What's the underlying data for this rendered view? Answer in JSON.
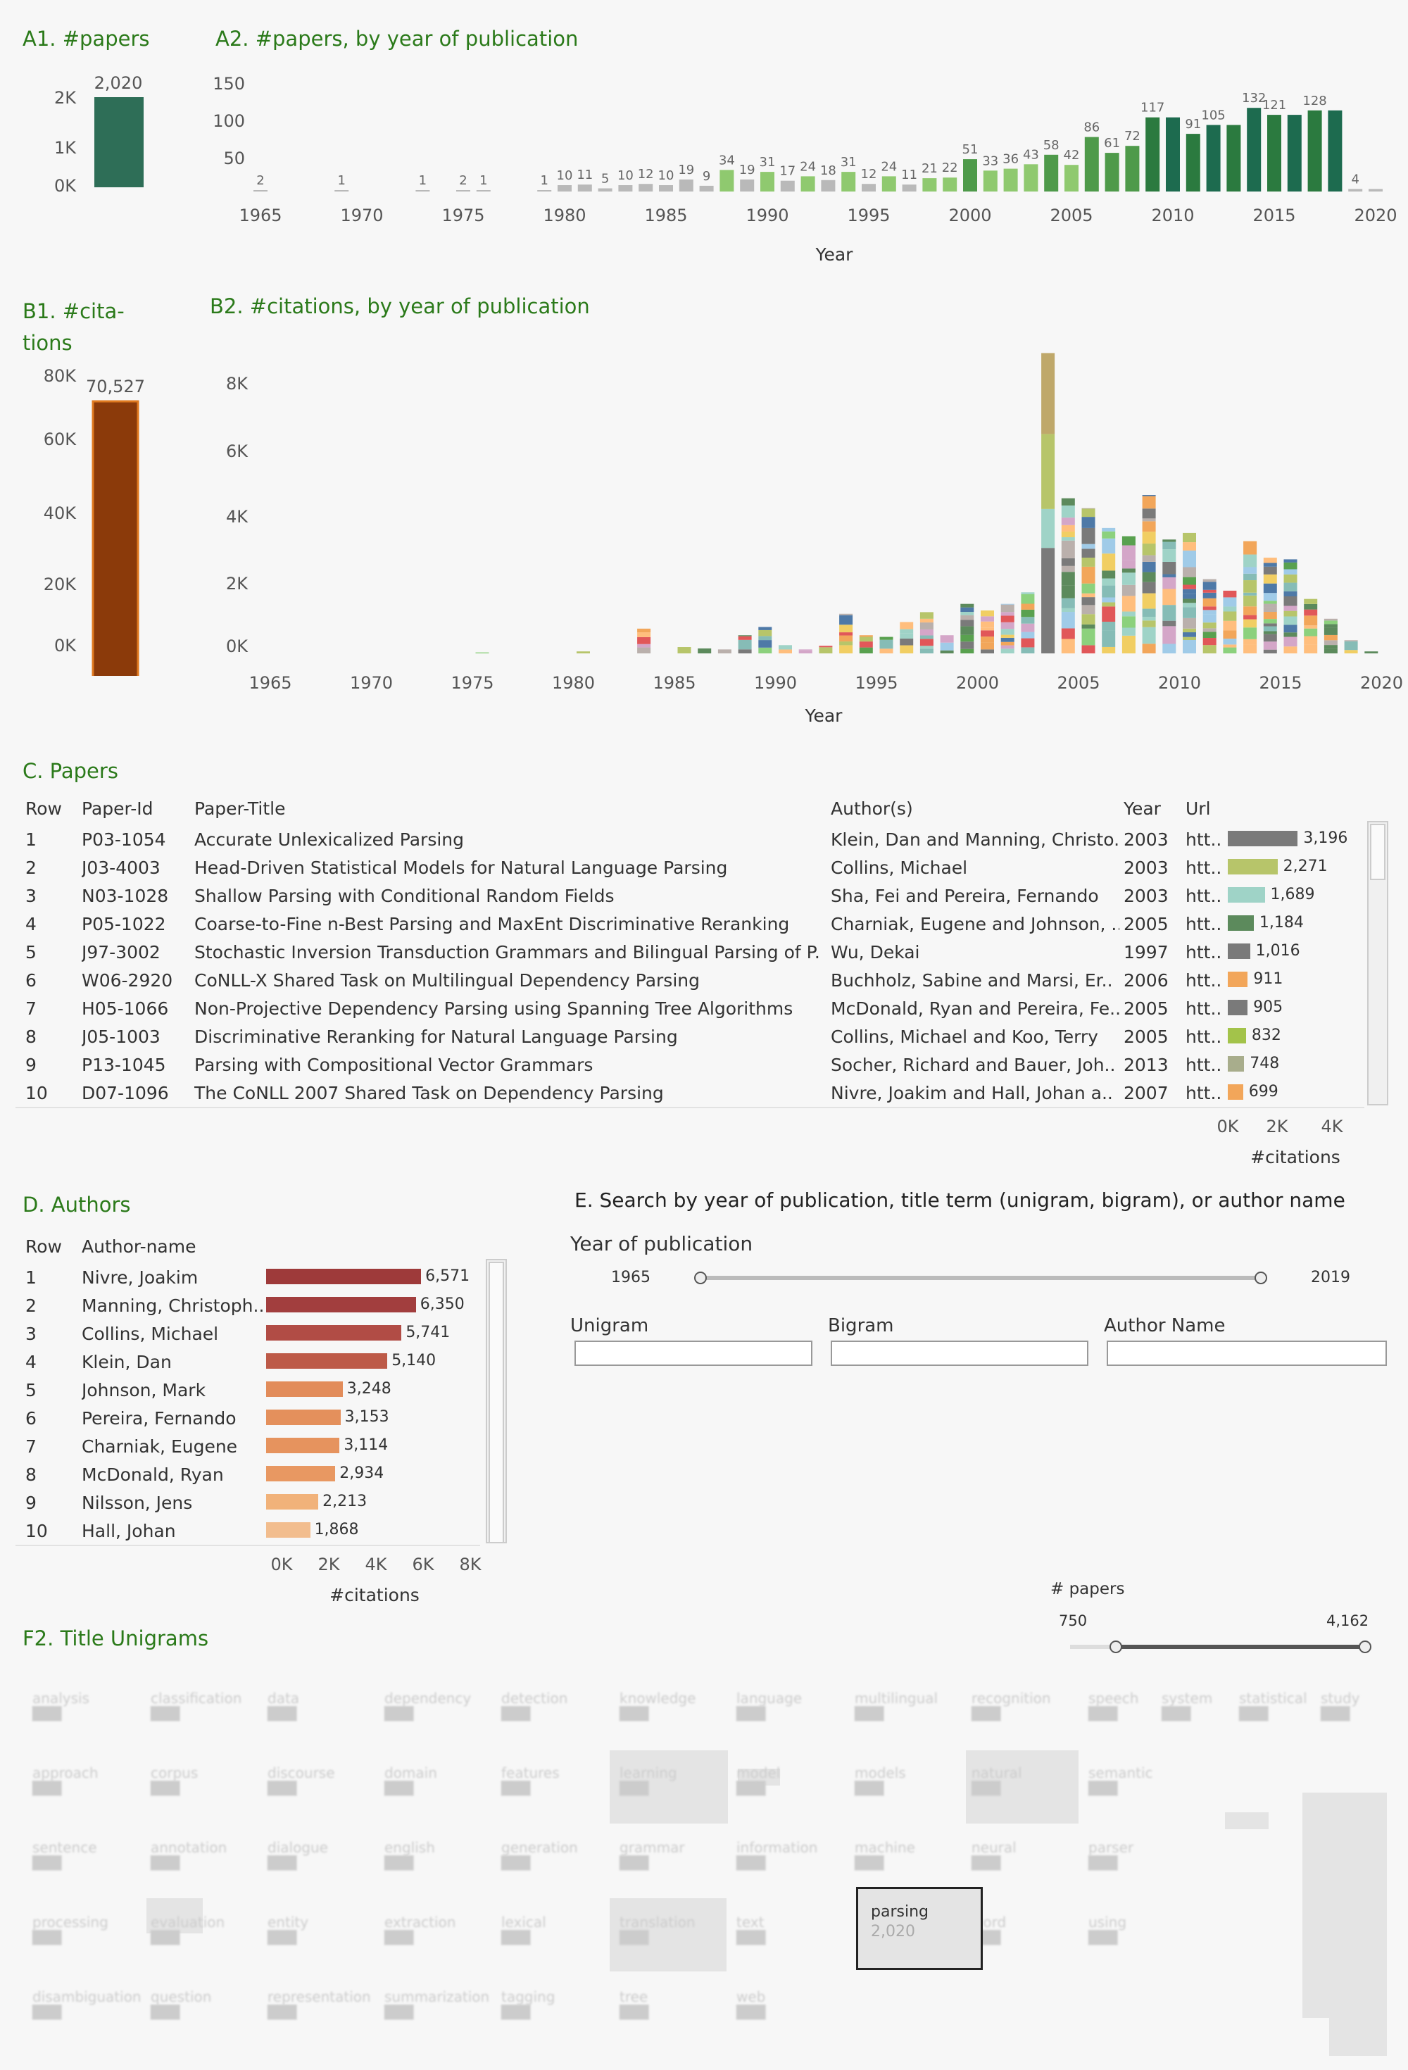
{
  "sections": {
    "a1": "A1. #papers",
    "a2": "A2. #papers, by year of publication",
    "b1_line1": "B1. #cita-",
    "b1_line2": "tions",
    "b2": "B2. #citations, by year of publication",
    "c": "C. Papers",
    "d": "D. Authors",
    "e": "E. Search by year of publication, title term (unigram, bigram), or  author name",
    "f2": "F2. Title Unigrams"
  },
  "colors": {
    "papers_total": "#2e6e57",
    "citations_total": "#8b3a0a",
    "section_title": "#2b7a1a"
  },
  "chart_data": [
    {
      "id": "A1",
      "type": "bar",
      "categories": [
        ""
      ],
      "values": [
        2020
      ],
      "data_label": "2,020",
      "yticks": [
        "0K",
        "1K",
        "2K"
      ],
      "ylim": [
        0,
        2400
      ]
    },
    {
      "id": "A2",
      "type": "bar",
      "xlabel": "Year",
      "yticks": [
        "50",
        "100",
        "150"
      ],
      "xticks": [
        "1965",
        "1970",
        "1975",
        "1980",
        "1985",
        "1990",
        "1995",
        "2000",
        "2005",
        "2010",
        "2015",
        "2020"
      ],
      "ylim": [
        0,
        160
      ],
      "x": [
        1965,
        1969,
        1973,
        1975,
        1976,
        1979,
        1980,
        1981,
        1982,
        1983,
        1984,
        1985,
        1986,
        1987,
        1988,
        1989,
        1990,
        1991,
        1992,
        1993,
        1994,
        1995,
        1996,
        1997,
        1998,
        1999,
        2000,
        2001,
        2002,
        2003,
        2004,
        2005,
        2006,
        2007,
        2008,
        2009,
        2010,
        2011,
        2012,
        2013,
        2014,
        2015,
        2016,
        2017,
        2018,
        2019,
        2020
      ],
      "values": [
        2,
        1,
        1,
        2,
        1,
        1,
        10,
        11,
        5,
        10,
        12,
        10,
        19,
        9,
        34,
        19,
        31,
        17,
        24,
        18,
        31,
        12,
        24,
        11,
        21,
        22,
        51,
        33,
        36,
        43,
        58,
        42,
        86,
        61,
        72,
        117,
        117,
        91,
        105,
        105,
        132,
        121,
        121,
        128,
        128,
        4,
        4
      ],
      "labels": [
        "2",
        "1",
        "1",
        "2",
        "1",
        "1",
        "10",
        "11",
        "5",
        "10",
        "12",
        "10",
        "19",
        "9",
        "34",
        "19",
        "31",
        "17",
        "24",
        "18",
        "31",
        "12",
        "24",
        "11",
        "21",
        "22",
        "51",
        "33",
        "36",
        "43",
        "58",
        "42",
        "86",
        "61",
        "72",
        "117",
        "",
        "91",
        "105",
        "",
        "132",
        "121",
        "",
        "128",
        "",
        "4",
        ""
      ]
    },
    {
      "id": "B1",
      "type": "bar",
      "categories": [
        ""
      ],
      "values": [
        70527
      ],
      "data_label": "70,527",
      "yticks": [
        "0K",
        "20K",
        "40K",
        "60K",
        "80K"
      ],
      "ylim": [
        0,
        82000
      ]
    },
    {
      "id": "B2",
      "type": "bar",
      "stacked": true,
      "xlabel": "Year",
      "yticks": [
        "0K",
        "2K",
        "4K",
        "6K",
        "8K"
      ],
      "xticks": [
        "1965",
        "1970",
        "1975",
        "1980",
        "1985",
        "1990",
        "1995",
        "2000",
        "2005",
        "2010",
        "2015",
        "2020"
      ],
      "ylim": [
        0,
        9200
      ],
      "x": [
        1975,
        1980,
        1983,
        1985,
        1986,
        1987,
        1988,
        1989,
        1990,
        1991,
        1992,
        1993,
        1994,
        1995,
        1996,
        1997,
        1998,
        1999,
        2000,
        2001,
        2002,
        2003,
        2004,
        2005,
        2006,
        2007,
        2008,
        2009,
        2010,
        2011,
        2012,
        2013,
        2014,
        2015,
        2016,
        2017,
        2018,
        2019
      ],
      "values": [
        30,
        60,
        750,
        200,
        150,
        120,
        550,
        800,
        250,
        120,
        230,
        1200,
        550,
        500,
        950,
        1250,
        550,
        1500,
        1300,
        1500,
        1850,
        9100,
        4700,
        4400,
        3800,
        3550,
        4800,
        3450,
        3650,
        2250,
        1900,
        3400,
        2900,
        2850,
        1650,
        1050,
        400,
        60
      ]
    }
  ],
  "papers_table": {
    "title": "C. Papers",
    "columns": [
      "Row",
      "Paper-Id",
      "Paper-Title",
      "Author(s)",
      "Year",
      "Url"
    ],
    "rows": [
      {
        "row": "1",
        "id": "P03-1054",
        "title": "Accurate Unlexicalized Parsing",
        "authors": "Klein, Dan and Manning, Christo..",
        "year": "2003",
        "url": "htt..",
        "citations": 3196,
        "cit_label": "3,196",
        "color": "#7a7a7a"
      },
      {
        "row": "2",
        "id": "J03-4003",
        "title": "Head-Driven Statistical Models for Natural Language Parsing",
        "authors": "Collins, Michael",
        "year": "2003",
        "url": "htt..",
        "citations": 2271,
        "cit_label": "2,271",
        "color": "#b7c56a"
      },
      {
        "row": "3",
        "id": "N03-1028",
        "title": "Shallow Parsing with Conditional Random Fields",
        "authors": "Sha, Fei and Pereira, Fernando",
        "year": "2003",
        "url": "htt..",
        "citations": 1689,
        "cit_label": "1,689",
        "color": "#9fd3c7"
      },
      {
        "row": "4",
        "id": "P05-1022",
        "title": "Coarse-to-Fine n-Best Parsing and MaxEnt Discriminative Reranking",
        "authors": "Charniak, Eugene and Johnson, ..",
        "year": "2005",
        "url": "htt..",
        "citations": 1184,
        "cit_label": "1,184",
        "color": "#5c8a5c"
      },
      {
        "row": "5",
        "id": "J97-3002",
        "title": "Stochastic Inversion Transduction Grammars and Bilingual Parsing of P..",
        "authors": "Wu, Dekai",
        "year": "1997",
        "url": "htt..",
        "citations": 1016,
        "cit_label": "1,016",
        "color": "#7a7a7a"
      },
      {
        "row": "6",
        "id": "W06-2920",
        "title": "CoNLL-X Shared Task on Multilingual Dependency Parsing",
        "authors": "Buchholz, Sabine and Marsi, Er..",
        "year": "2006",
        "url": "htt..",
        "citations": 911,
        "cit_label": "911",
        "color": "#f2a65a"
      },
      {
        "row": "7",
        "id": "H05-1066",
        "title": "Non-Projective Dependency Parsing using Spanning Tree Algorithms",
        "authors": "McDonald, Ryan and Pereira, Fe..",
        "year": "2005",
        "url": "htt..",
        "citations": 905,
        "cit_label": "905",
        "color": "#7a7a7a"
      },
      {
        "row": "8",
        "id": "J05-1003",
        "title": "Discriminative Reranking for Natural Language Parsing",
        "authors": "Collins, Michael and Koo, Terry",
        "year": "2005",
        "url": "htt..",
        "citations": 832,
        "cit_label": "832",
        "color": "#a3c34a"
      },
      {
        "row": "9",
        "id": "P13-1045",
        "title": "Parsing with Compositional Vector Grammars",
        "authors": "Socher, Richard and Bauer, Joh..",
        "year": "2013",
        "url": "htt..",
        "citations": 748,
        "cit_label": "748",
        "color": "#a8ad8c"
      },
      {
        "row": "10",
        "id": "D07-1096",
        "title": "The CoNLL 2007 Shared Task on Dependency Parsing",
        "authors": "Nivre, Joakim and Hall, Johan a..",
        "year": "2007",
        "url": "htt..",
        "citations": 699,
        "cit_label": "699",
        "color": "#f2a65a"
      }
    ],
    "axis_ticks": [
      "0K",
      "2K",
      "4K"
    ],
    "axis_title": "#citations",
    "axis_max": 5000
  },
  "authors_table": {
    "columns": [
      "Row",
      "Author-name"
    ],
    "rows": [
      {
        "row": "1",
        "name": "Nivre, Joakim",
        "citations": 6571,
        "label": "6,571",
        "color": "#9e3a3a"
      },
      {
        "row": "2",
        "name": "Manning, Christoph..",
        "citations": 6350,
        "label": "6,350",
        "color": "#a23e3e"
      },
      {
        "row": "3",
        "name": "Collins, Michael",
        "citations": 5741,
        "label": "5,741",
        "color": "#b14c45"
      },
      {
        "row": "4",
        "name": "Klein, Dan",
        "citations": 5140,
        "label": "5,140",
        "color": "#bd5a48"
      },
      {
        "row": "5",
        "name": "Johnson, Mark",
        "citations": 3248,
        "label": "3,248",
        "color": "#e28c5a"
      },
      {
        "row": "6",
        "name": "Pereira, Fernando",
        "citations": 3153,
        "label": "3,153",
        "color": "#e4905c"
      },
      {
        "row": "7",
        "name": "Charniak, Eugene",
        "citations": 3114,
        "label": "3,114",
        "color": "#e6935e"
      },
      {
        "row": "8",
        "name": "McDonald, Ryan",
        "citations": 2934,
        "label": "2,934",
        "color": "#e89862"
      },
      {
        "row": "9",
        "name": "Nilsson, Jens",
        "citations": 2213,
        "label": "2,213",
        "color": "#f1b27a"
      },
      {
        "row": "10",
        "name": "Hall, Johan",
        "citations": 1868,
        "label": "1,868",
        "color": "#f2bd8e"
      }
    ],
    "axis_ticks": [
      "0K",
      "2K",
      "4K",
      "6K",
      "8K"
    ],
    "axis_title": "#citations",
    "axis_max": 8500
  },
  "search": {
    "year_label": "Year of publication",
    "year_min": "1965",
    "year_max": "2019",
    "unigram_label": "Unigram",
    "bigram_label": "Bigram",
    "author_label": "Author Name",
    "unigram_value": "",
    "bigram_value": "",
    "author_value": ""
  },
  "papers_filter": {
    "label": "# papers",
    "min": "750",
    "max": "4,162"
  },
  "treemap": {
    "labels": [
      "analysis",
      "classification",
      "data",
      "dependency",
      "detection",
      "knowledge",
      "language",
      "multilingual",
      "recognition",
      "speech",
      "system",
      "statistical",
      "study",
      "approach",
      "corpus",
      "discourse",
      "domain",
      "features",
      "learning",
      "model",
      "models",
      "natural",
      "semantic",
      "sentence",
      "annotation",
      "dialogue",
      "english",
      "generation",
      "grammar",
      "information",
      "machine",
      "neural",
      "parser",
      "processing",
      "evaluation",
      "entity",
      "extraction",
      "lexical",
      "translation",
      "text",
      "word",
      "using",
      "disambiguation",
      "question",
      "representation",
      "summarization",
      "tagging",
      "tree",
      "web"
    ],
    "selected_label": "parsing",
    "selected_value": "2,020"
  }
}
